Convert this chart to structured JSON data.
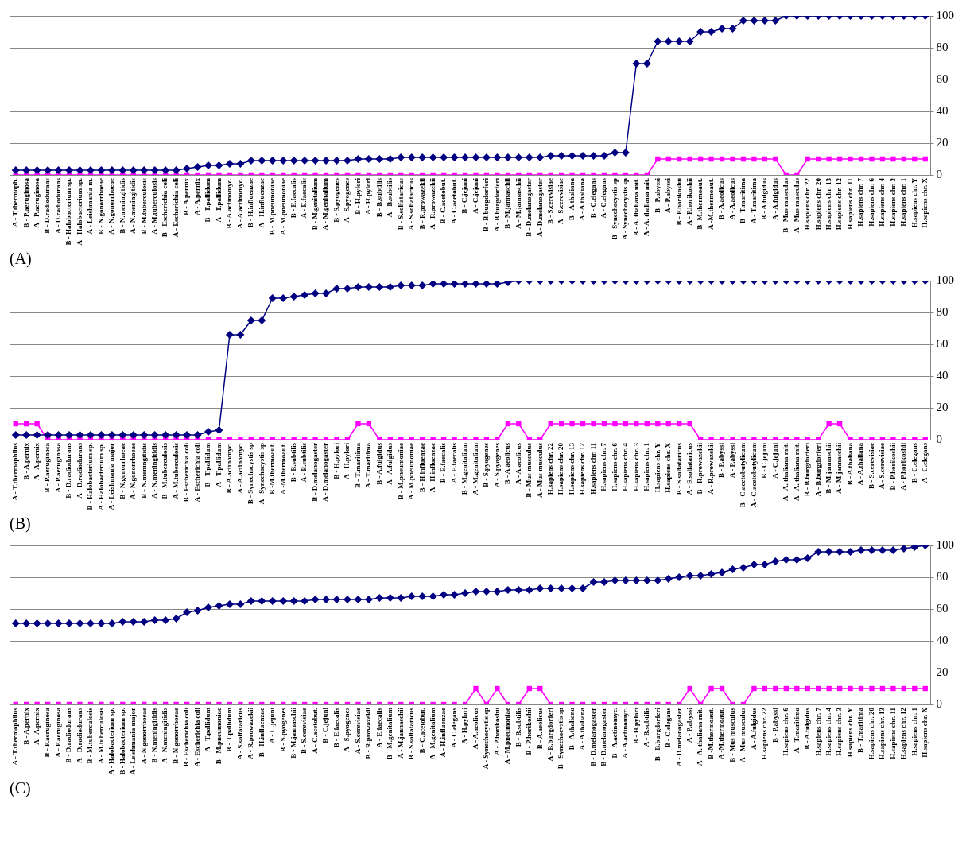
{
  "chart_data": [
    {
      "type": "line",
      "title": "(A)",
      "categories": [
        "A - T.thermoph.",
        "B - P.aeruginosa",
        "A - P.aeruginosa",
        "B - D.radiodurans",
        "A - D.radiodurans",
        "B - Halobacterium sp.",
        "A - Halobacterium sp.",
        "A - Leishmania m.",
        "B - N.gonorrhoeae",
        "A - N.gonorrhoeae",
        "B - N.meningitidis",
        "A - N.meningitidis",
        "B - M.tuberculosis",
        "A - M.tuberculosis",
        "B - Escherichia coli",
        "A - Escherichia coli",
        "B - A.pernix",
        "A - A.pernix",
        "B - T.pallidum",
        "A - T.pallidum",
        "B - A.actinomyc.",
        "A - A.actinomyc.",
        "B - H.influenzae",
        "A - H.influenzae",
        "B - M.pneumoniae",
        "A - M.pneumoniae",
        "B - E.faecalis",
        "A - E.faecalis",
        "B - M.genitalium",
        "A - M.genitalium",
        "B - S.pyogenes",
        "A - S.pyogenes",
        "B - H.pylori",
        "A - H.pylori",
        "B - B.subtilis",
        "A - B.subtilis",
        "B - S.solfataricus",
        "A - S.solfataricus",
        "B - R.prowazekii",
        "A - R.prowazekii",
        "B - C.acetobut.",
        "A - C.acetobut.",
        "B - C.jejuni",
        "A - C.jejuni",
        "B - B.burgdorferi",
        "A - B.burgdorferi",
        "B - M.jannaschii",
        "A - M.jannaschii",
        "B - D.melanogaster",
        "A - D.melanogaster",
        "B - S.cerevisiae",
        "A - S.cerevisiae",
        "B - A.thaliana",
        "A - A.thaliana",
        "B - C.elegans",
        "A - C.elegans",
        "B - Synechocystis sp",
        "A - Synechocystis sp",
        "B - A. thaliana mit.",
        "A - A. thaliana mit.",
        "B - P.abyssi",
        "A - P.abyssi",
        "B - P.horikoshii",
        "A - P.horikoshii",
        "B -M.thermoaut.",
        "A -M.thermoaut.",
        "B - A.aeolicus",
        "A - A.aeolicus",
        "B - T.maritima",
        "A - T.maritima",
        "B - A.fulgidus",
        "A - A.fulgidus",
        "B - Mus musculus",
        "A - Mus musculus",
        "H.sapiens chr. 22",
        "H.sapiens chr. 20",
        "H.sapiens chr. 13",
        "H.sapiens chr. 12",
        "H.sapiens chr. 11",
        "H.sapiens chr. 7",
        "H.sapiens chr. 6",
        "H.sapiens chr. 4",
        "H.sapiens chr. 3",
        "H.sapiens chr. 1",
        "H.sapiens chr. Y",
        "H.sapiens chr. X"
      ],
      "series": [
        {
          "color": "#000080",
          "marker": "diamond",
          "values": [
            3,
            3,
            3,
            3,
            3,
            3,
            3,
            3,
            3,
            3,
            3,
            3,
            3,
            3,
            3,
            3,
            4,
            5,
            6,
            6,
            7,
            7,
            9,
            9,
            9,
            9,
            9,
            9,
            9,
            9,
            9,
            9,
            10,
            10,
            10,
            10,
            11,
            11,
            11,
            11,
            11,
            11,
            11,
            11,
            11,
            11,
            11,
            11,
            11,
            11,
            12,
            12,
            12,
            12,
            12,
            12,
            14,
            14,
            70,
            70,
            84,
            84,
            84,
            84,
            90,
            90,
            92,
            92,
            97,
            97,
            97,
            97,
            100,
            100,
            100,
            100,
            100,
            100,
            100,
            100,
            100,
            100,
            100,
            100,
            100,
            100
          ]
        },
        {
          "color": "#ff00ff",
          "marker": "square",
          "values": [
            0,
            0,
            0,
            0,
            0,
            0,
            0,
            0,
            0,
            0,
            0,
            0,
            0,
            0,
            0,
            0,
            0,
            0,
            0,
            0,
            0,
            0,
            0,
            0,
            0,
            0,
            0,
            0,
            0,
            0,
            0,
            0,
            0,
            0,
            0,
            0,
            0,
            0,
            0,
            0,
            0,
            0,
            0,
            0,
            0,
            0,
            0,
            0,
            0,
            0,
            0,
            0,
            0,
            0,
            0,
            0,
            0,
            0,
            0,
            0,
            10,
            10,
            10,
            10,
            10,
            10,
            10,
            10,
            10,
            10,
            10,
            10,
            0,
            0,
            10,
            10,
            10,
            10,
            10,
            10,
            10,
            10,
            10,
            10,
            10,
            10
          ]
        }
      ],
      "ylim": [
        0,
        100
      ],
      "yticks": [
        0,
        20,
        40,
        60,
        80,
        100
      ],
      "grid": "y",
      "legend": false
    },
    {
      "type": "line",
      "title": "(B)",
      "categories": [
        "A - T.thermophilus",
        "B - A.pernix",
        "A - A.pernix",
        "B - P.aeruginosa",
        "A - P.aeruginosa",
        "B - D.radiodurans",
        "A - D.radiodurans",
        "B - Halobacterium sp.",
        "A - Halobacterium sp.",
        "A - Leishmania major",
        "B - N.gonorrhoeae",
        "A - N.gonorrhoeae",
        "B - N.meningitidis",
        "A - N.meningitidis",
        "B - M.tuberculosis",
        "A - M.tuberculosis",
        "B - Escherichia coli",
        "A - Escherichia coli",
        "B - T.pallidum",
        "A - T.pallidum",
        "B - A.actinomyc.",
        "A - A.actinomyc.",
        "B - Synechocystis sp",
        "A - Synechocystis sp",
        "B -M.thermoaut.",
        "A -M.thermoaut.",
        "B - B.subtilis",
        "A - B.subtilis",
        "B - D.melanogaster",
        "A - D.melanogaster",
        "B - H.pylori",
        "A - H.pylori",
        "B - T.maritima",
        "A - T.maritima",
        "B - A.fulgidus",
        "A - A.fulgidus",
        "B - M.pneumoniae",
        "A - M.pneumoniae",
        "B - H.influenzae",
        "A - H.influenzae",
        "B - E.faecalis",
        "A - E.faecalis",
        "B - M.genitalium",
        "A - M.genitalium",
        "B - S.pyogenes",
        "A - S.pyogenes",
        "B - A.aeolicus",
        "A - A.aeolicus",
        "B - Mus musculus",
        "A - Mus musculus",
        "H.sapiens chr. 22",
        "H.sapiens chr. 20",
        "H.sapiens chr. 13",
        "H.sapiens chr. 12",
        "H.sapiens chr. 11",
        "H.sapiens chr. 7",
        "H.sapiens chr. 6",
        "H.sapiens chr. 4",
        "H.sapiens chr. 3",
        "H.sapiens chr. 1",
        "H.sapiens chr. Y",
        "H.sapiens chr. X",
        "B - S.solfataricus",
        "A - S.solfataricus",
        "B - R.prowazekii",
        "A - R.prowazekii",
        "B - P.abyssi",
        "A - P.abyssi",
        "B - C.acetobutylicum",
        "A - C.acetobutylicum",
        "B - C.jejuni",
        "A - C.jejuni",
        "A - A. thaliana mit.",
        "A - A. thaliana mit.",
        "B - B.burgdorferi",
        "A - B.burgdorferi",
        "B - M.jannaschii",
        "A - M.jannaschii",
        "B - A.thaliana",
        "A - A.thaliana",
        "B - S.cerevisiae",
        "A - S.cerevisiae",
        "B - P.horikoshii",
        "A - P.horikoshii",
        "B - C.elegans",
        "A - C.elegans"
      ],
      "series": [
        {
          "color": "#000080",
          "marker": "diamond",
          "values": [
            3,
            3,
            3,
            3,
            3,
            3,
            3,
            3,
            3,
            3,
            3,
            3,
            3,
            3,
            3,
            3,
            3,
            3,
            5,
            6,
            66,
            66,
            75,
            75,
            89,
            89,
            90,
            91,
            92,
            92,
            95,
            95,
            96,
            96,
            96,
            96,
            97,
            97,
            97,
            98,
            98,
            98,
            98,
            98,
            98,
            98,
            99,
            100,
            100,
            100,
            100,
            100,
            100,
            100,
            100,
            100,
            100,
            100,
            100,
            100,
            100,
            100,
            100,
            100,
            100,
            100,
            100,
            100,
            100,
            100,
            100,
            100,
            100,
            100,
            100,
            100,
            100,
            100,
            100,
            100,
            100,
            100,
            100,
            100,
            100,
            100
          ]
        },
        {
          "color": "#ff00ff",
          "marker": "square",
          "values": [
            10,
            10,
            10,
            0,
            0,
            0,
            0,
            0,
            0,
            0,
            0,
            0,
            0,
            0,
            0,
            0,
            0,
            0,
            0,
            0,
            0,
            0,
            0,
            0,
            0,
            0,
            0,
            0,
            0,
            0,
            0,
            0,
            10,
            10,
            0,
            0,
            0,
            0,
            0,
            0,
            0,
            0,
            0,
            0,
            0,
            0,
            10,
            10,
            0,
            0,
            10,
            10,
            10,
            10,
            10,
            10,
            10,
            10,
            10,
            10,
            10,
            10,
            10,
            10,
            0,
            0,
            0,
            0,
            0,
            0,
            0,
            0,
            0,
            0,
            0,
            0,
            10,
            10,
            0,
            0,
            0,
            0,
            0,
            0,
            0,
            0
          ]
        }
      ],
      "ylim": [
        0,
        100
      ],
      "yticks": [
        0,
        20,
        40,
        60,
        80,
        100
      ],
      "grid": "y",
      "legend": false
    },
    {
      "type": "line",
      "title": "(C)",
      "categories": [
        "A - T.thermophilus",
        "B - A.pernix",
        "A - A.pernix",
        "B - P.aeruginosa",
        "A - P.aeruginosa",
        "B - D.radiodurans",
        "A - D.radiodurans",
        "B - M.tuberculosis",
        "A - M.tuberculosis",
        "A - Halobacterium sp.",
        "B - Halobacterium sp.",
        "A - Leishmania major",
        "A - N.gonorrhoeae",
        "B - N.meningitidis",
        "A - N.meningitidis",
        "B - N.gonorrhoeae",
        "B - Escherichia coli",
        "A - Escherichia coli",
        "A - T.pallidum",
        "B - M.pneumoniae",
        "B - T.pallidum",
        "A - S.solfataricus",
        "A - R.prowazekii",
        "B - H.influenzae",
        "A - C.jejuni",
        "B - S.pyogenes",
        "B - M.jannaschii",
        "B - S.cerevisiae",
        "A - C.acetobut.",
        "B - C.jejuni",
        "B - E.faecalis",
        "A - S.pyogenes",
        "A - S.cerevisiae",
        "B - R.prowazekii",
        "A - E.faecalis",
        "B - M.genitalium",
        "A - M.jannaschii",
        "B - S.solfataricus",
        "B - C.acetobut.",
        "A - M.genitalium",
        "A - H.influenzae",
        "A - C.elegans",
        "A - H.pylori",
        "A - A.aeolicus",
        "A - Synechocystis sp",
        "A - P.horikoshii",
        "A - M.pneumoniae",
        "B - B.subtilis",
        "B - P.horikoshii",
        "B - A.aeolicus",
        "A - B.burgdorferi",
        "B - Synechocystis sp",
        "B - A.thaliana",
        "A - A.thaliana",
        "B - D.melanogaster",
        "B - D.melanogaster",
        "B - A.actinomyc.",
        "A - A.actinomyc.",
        "B - H.pylori",
        "A - B.subtilis",
        "B - B.burgdorferi",
        "B - C.elegans",
        "A - D.melanogaster",
        "A - P.abyssi",
        "A - A. thaliana mit.",
        "B -M.thermoaut.",
        "A -M.thermoaut.",
        "B - Mus musculus",
        "A - Mus musculus",
        "A - A.fulgidus",
        "H.sapiens chr. 22",
        "B - P.abyssi",
        "H.sapiens chr. 6",
        "A - T.maritima",
        "B - A.fulgidus",
        "H.sapiens chr. 7",
        "H.sapiens chr. 4",
        "H.sapiens chr. 3",
        "H.sapiens chr. Y",
        "B - T.maritima",
        "H.sapiens chr. 20",
        "H.sapiens chr. 13",
        "H.sapiens chr. 11",
        "H.sapiens chr. 12",
        "H.sapiens chr. 1",
        "H.sapiens chr. X"
      ],
      "series": [
        {
          "color": "#000080",
          "marker": "diamond",
          "values": [
            51,
            51,
            51,
            51,
            51,
            51,
            51,
            51,
            51,
            51,
            52,
            52,
            52,
            53,
            53,
            54,
            58,
            59,
            61,
            62,
            63,
            63,
            65,
            65,
            65,
            65,
            65,
            65,
            66,
            66,
            66,
            66,
            66,
            66,
            67,
            67,
            67,
            68,
            68,
            68,
            69,
            69,
            70,
            71,
            71,
            71,
            72,
            72,
            72,
            73,
            73,
            73,
            73,
            73,
            77,
            77,
            78,
            78,
            78,
            78,
            78,
            79,
            80,
            81,
            81,
            82,
            83,
            85,
            86,
            88,
            88,
            90,
            91,
            91,
            92,
            96,
            96,
            96,
            96,
            97,
            97,
            97,
            97,
            98,
            99,
            100
          ]
        },
        {
          "color": "#ff00ff",
          "marker": "square",
          "values": [
            0,
            0,
            0,
            0,
            0,
            0,
            0,
            0,
            0,
            0,
            0,
            0,
            0,
            0,
            0,
            0,
            0,
            0,
            0,
            0,
            0,
            0,
            0,
            0,
            0,
            0,
            0,
            0,
            0,
            0,
            0,
            0,
            0,
            0,
            0,
            0,
            0,
            0,
            0,
            0,
            0,
            0,
            0,
            10,
            0,
            10,
            0,
            0,
            10,
            10,
            0,
            0,
            0,
            0,
            0,
            0,
            0,
            0,
            0,
            0,
            0,
            0,
            0,
            10,
            0,
            10,
            10,
            0,
            0,
            10,
            10,
            10,
            10,
            10,
            10,
            10,
            10,
            10,
            10,
            10,
            10,
            10,
            10,
            10,
            10,
            10
          ]
        }
      ],
      "ylim": [
        0,
        100
      ],
      "yticks": [
        0,
        20,
        40,
        60,
        80,
        100
      ],
      "grid": "y",
      "legend": false
    }
  ]
}
